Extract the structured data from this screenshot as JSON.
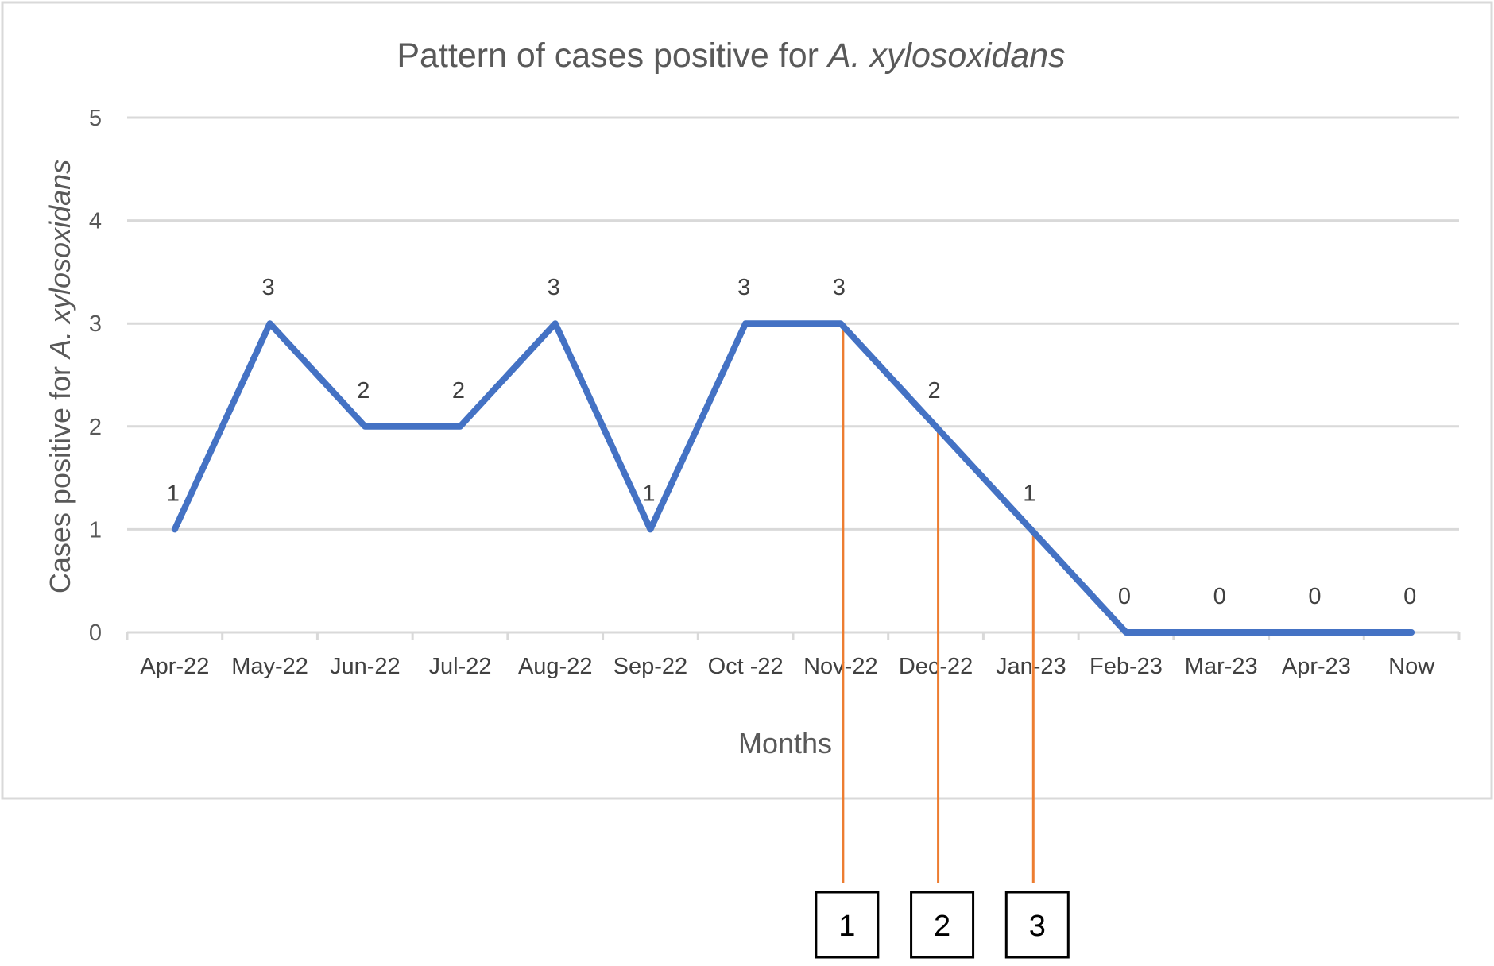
{
  "chart_data": {
    "type": "line",
    "title": "Pattern of cases positive for",
    "title_italic": "A. xylosoxidans",
    "xlabel": "Months",
    "ylabel": "Cases positive for",
    "ylabel_italic": "A. xylosoxidans",
    "ylim": [
      0,
      5
    ],
    "yticks": [
      "0",
      "1",
      "2",
      "3",
      "4",
      "5"
    ],
    "grid": true,
    "categories": [
      "Apr-22",
      "May-22",
      "Jun-22",
      "Jul-22",
      "Aug-22",
      "Sep-22",
      "Oct -22",
      "Nov-22",
      "Dec-22",
      "Jan-23",
      "Feb-23",
      "Mar-23",
      "Apr-23",
      "Now"
    ],
    "series": [
      {
        "values": [
          1,
          3,
          2,
          2,
          3,
          1,
          3,
          3,
          2,
          1,
          0,
          0,
          0,
          0
        ],
        "color": "#4472C4"
      }
    ],
    "data_labels": [
      "1",
      "3",
      "2",
      "2",
      "3",
      "1",
      "3",
      "3",
      "2",
      "1",
      "0",
      "0",
      "0",
      "0"
    ],
    "markers": [
      {
        "label": "1",
        "category_index": 7
      },
      {
        "label": "2",
        "category_index": 8
      },
      {
        "label": "3",
        "category_index": 9
      }
    ],
    "marker_color": "#ED7D31"
  }
}
